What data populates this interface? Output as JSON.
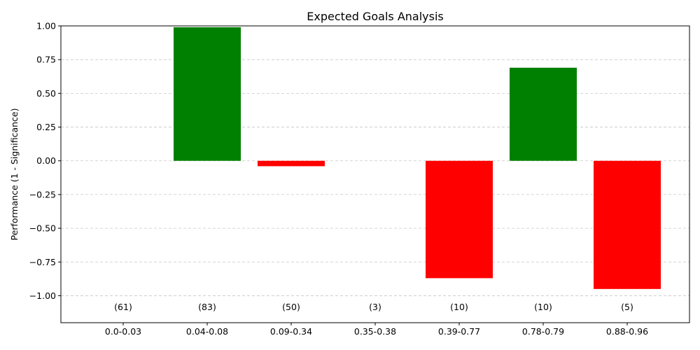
{
  "chart_data": {
    "type": "bar",
    "title": "Expected Goals Analysis",
    "xlabel": "",
    "ylabel": "Performance (1 - Significance)",
    "ylim": [
      -1.2,
      1.0
    ],
    "yticks": [
      "1.00",
      "0.75",
      "0.50",
      "0.25",
      "0.00",
      "−0.25",
      "−0.50",
      "−0.75",
      "−1.00"
    ],
    "ytick_values": [
      1.0,
      0.75,
      0.5,
      0.25,
      0.0,
      -0.25,
      -0.5,
      -0.75,
      -1.0
    ],
    "categories": [
      "0.0-0.03",
      "0.04-0.08",
      "0.09-0.34",
      "0.35-0.38",
      "0.39-0.77",
      "0.78-0.79",
      "0.88-0.96"
    ],
    "values": [
      0.0,
      0.99,
      -0.04,
      0.0,
      -0.87,
      0.69,
      -0.95
    ],
    "counts": [
      "(61)",
      "(83)",
      "(50)",
      "(3)",
      "(10)",
      "(10)",
      "(5)"
    ],
    "colors": {
      "positive": "#008000",
      "negative": "#ff0000",
      "grid": "#c8c8c8"
    },
    "grid": "y-dashed"
  }
}
